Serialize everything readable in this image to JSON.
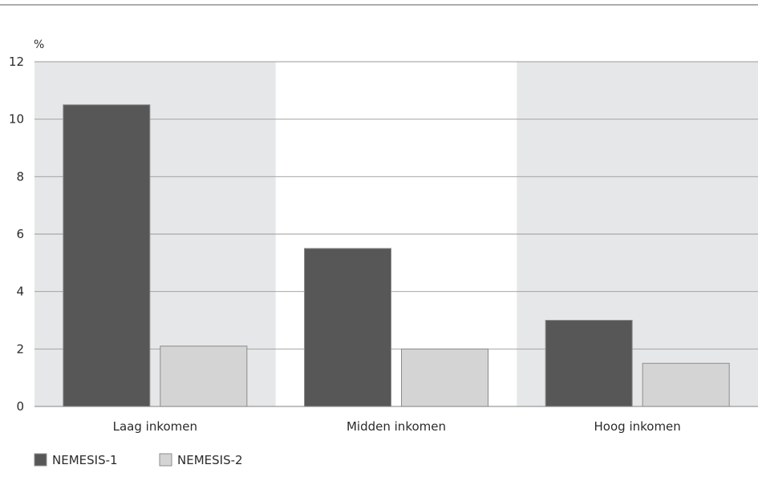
{
  "chart_data": {
    "type": "bar",
    "unit_label": "%",
    "categories": [
      "Laag inkomen",
      "Midden inkomen",
      "Hoog inkomen"
    ],
    "series": [
      {
        "name": "NEMESIS-1",
        "values": [
          10.5,
          5.5,
          3.0
        ],
        "color": "#575757"
      },
      {
        "name": "NEMESIS-2",
        "values": [
          2.1,
          2.0,
          1.5
        ],
        "color": "#d4d4d4"
      }
    ],
    "ylim": [
      0,
      12
    ],
    "yticks": [
      0,
      2,
      4,
      6,
      8,
      10,
      12
    ],
    "grid": true,
    "legend_position": "bottom-left",
    "colors": {
      "band_shade": "#e6e7e8",
      "grid_line": "#9a9a9a",
      "top_rule": "#7a7a7a",
      "bar_stroke": "#8c8c8c"
    }
  }
}
